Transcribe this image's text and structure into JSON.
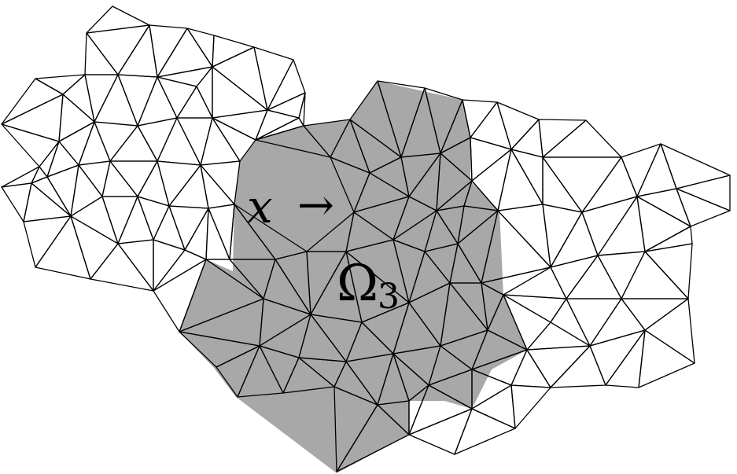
{
  "diagram": {
    "point_label": "x",
    "arrow_glyph": "→",
    "region_label": "Ω",
    "region_subscript": "3",
    "colors": {
      "background": "#ffffff",
      "edge": "#000000",
      "region_fill": "#a8a8a8"
    }
  }
}
